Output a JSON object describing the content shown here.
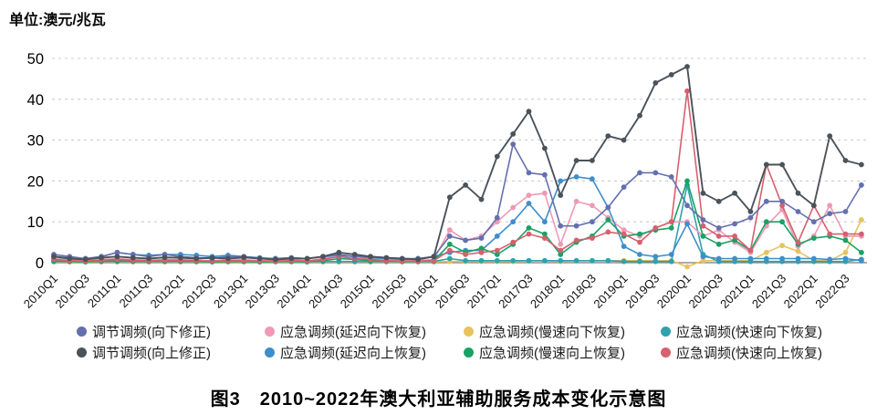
{
  "unit_label": "单位:澳元/兆瓦",
  "title": "图3　2010~2022年澳大利亚辅助服务成本变化示意图",
  "chart_data": {
    "type": "line",
    "title": "图3 2010~2022年澳大利亚辅助服务成本变化示意图",
    "xlabel": "",
    "ylabel": "澳元/兆瓦",
    "ylim": [
      -2,
      52
    ],
    "yticks": [
      0,
      10,
      20,
      30,
      40,
      50
    ],
    "grid": "horizontal-dashed",
    "legend_position": "bottom-2rows",
    "tick_step": 2,
    "categories": [
      "2010Q1",
      "2010Q2",
      "2010Q3",
      "2010Q4",
      "2011Q1",
      "2011Q2",
      "2011Q3",
      "2011Q4",
      "2012Q1",
      "2012Q2",
      "2012Q3",
      "2012Q4",
      "2013Q1",
      "2013Q2",
      "2013Q3",
      "2013Q4",
      "2014Q1",
      "2014Q2",
      "2014Q3",
      "2014Q4",
      "2015Q1",
      "2015Q2",
      "2015Q3",
      "2015Q4",
      "2016Q1",
      "2016Q2",
      "2016Q3",
      "2016Q4",
      "2017Q1",
      "2017Q2",
      "2017Q3",
      "2017Q4",
      "2018Q1",
      "2018Q2",
      "2018Q3",
      "2018Q4",
      "2019Q1",
      "2019Q2",
      "2019Q3",
      "2019Q4",
      "2020Q1",
      "2020Q2",
      "2020Q3",
      "2020Q4",
      "2021Q1",
      "2021Q2",
      "2021Q3",
      "2021Q4",
      "2022Q1",
      "2022Q2",
      "2022Q3",
      "2022Q4"
    ],
    "series": [
      {
        "key": "reg_down",
        "name": "调节调频(向下修正)",
        "color": "#6470ae",
        "values": [
          2,
          1.5,
          1,
          1.5,
          2.5,
          2,
          1.5,
          2,
          1.5,
          1.2,
          1,
          1.5,
          1.5,
          1,
          1,
          1.2,
          1,
          1.5,
          2,
          1.5,
          1.5,
          1.2,
          1,
          1,
          1.5,
          6.5,
          5.5,
          6,
          11,
          29,
          22,
          21.5,
          9,
          9,
          10,
          13.5,
          18.5,
          22,
          22,
          21,
          14,
          10.5,
          8.5,
          9.5,
          11,
          15,
          15,
          12.5,
          10,
          12,
          12.5,
          19
        ]
      },
      {
        "key": "em_delay_down",
        "name": "应急调频(延迟向下恢复)",
        "color": "#ee9ab5",
        "values": [
          1,
          0.8,
          0.5,
          0.8,
          1,
          0.8,
          0.6,
          0.8,
          0.8,
          0.6,
          0.5,
          0.8,
          0.8,
          0.5,
          0.5,
          0.6,
          0.5,
          1,
          2,
          1.5,
          1,
          0.8,
          0.5,
          0.5,
          0.8,
          8,
          5.5,
          6.5,
          10,
          13.5,
          16.5,
          17,
          4.5,
          15,
          14,
          11,
          8,
          6.5,
          8.5,
          10,
          10,
          6.5,
          8,
          5,
          2.5,
          9,
          13,
          4,
          6.5,
          14,
          6.5,
          6.5
        ]
      },
      {
        "key": "em_slow_down",
        "name": "应急调频(慢速向下恢复)",
        "color": "#e8c35d",
        "values": [
          0.2,
          0.2,
          0.2,
          0.2,
          0.2,
          0.2,
          0.2,
          0.2,
          0.2,
          0.2,
          0.2,
          0.2,
          0.2,
          0.2,
          0.2,
          0.2,
          0.2,
          0.2,
          0.2,
          0.2,
          0.2,
          0.2,
          0.2,
          0.2,
          0.2,
          0.3,
          0.3,
          0.3,
          0.3,
          0.3,
          0.5,
          0.5,
          0.3,
          0.5,
          0.5,
          0.5,
          0.5,
          0.5,
          0.5,
          0.5,
          -1,
          0.5,
          0.5,
          0.5,
          0.5,
          2.5,
          4.2,
          2.8,
          0.5,
          0.5,
          2.5,
          10.5
        ]
      },
      {
        "key": "em_fast_down",
        "name": "应急调频(快速向下恢复)",
        "color": "#31a1ae",
        "values": [
          0.3,
          0.3,
          0.3,
          0.3,
          0.3,
          0.3,
          0.3,
          0.3,
          0.3,
          0.3,
          0.3,
          0.3,
          0.3,
          0.3,
          0.3,
          0.3,
          0.3,
          0.3,
          0.3,
          0.3,
          0.3,
          0.3,
          0.3,
          0.3,
          0.3,
          1,
          0.5,
          0.5,
          0.5,
          0.5,
          0.5,
          0.5,
          0.5,
          0.5,
          0.5,
          0.5,
          0.3,
          0.3,
          0.3,
          0.3,
          19,
          2,
          0.3,
          0.3,
          0.3,
          0.3,
          0.3,
          0.3,
          0.3,
          0.3,
          0.3,
          0.8
        ]
      },
      {
        "key": "reg_up",
        "name": "调节调频(向上修正)",
        "color": "#4b535a",
        "values": [
          1.5,
          1,
          0.8,
          1.2,
          1.5,
          1.2,
          1,
          1.3,
          1.2,
          1,
          1.2,
          1,
          1.3,
          1,
          0.8,
          1,
          1,
          1.5,
          2.5,
          2,
          1.5,
          1.2,
          1,
          0.8,
          1.5,
          16,
          19,
          15.5,
          26,
          31.5,
          37,
          28,
          16.5,
          25,
          25,
          31,
          30,
          36,
          44,
          46,
          48,
          17,
          15,
          17,
          12.5,
          24,
          24,
          17,
          14,
          31,
          25,
          24
        ]
      },
      {
        "key": "em_delay_up",
        "name": "应急调频(延迟向上恢复)",
        "color": "#3e8ecb",
        "values": [
          1.5,
          1.2,
          1,
          1.5,
          2.5,
          2,
          1.8,
          2,
          2,
          1.8,
          1.5,
          1.8,
          1.5,
          1.2,
          1,
          1.2,
          1,
          1.5,
          1.8,
          1.5,
          1.2,
          1,
          0.8,
          1,
          1.5,
          2.5,
          3,
          3,
          6.5,
          10,
          14.5,
          10,
          20,
          21,
          20.5,
          13.5,
          4,
          2,
          1.5,
          2,
          9.5,
          1.5,
          1,
          1,
          1,
          1,
          1,
          1,
          1,
          0.8,
          1,
          0.5
        ]
      },
      {
        "key": "em_slow_up",
        "name": "应急调频(慢速向上恢复)",
        "color": "#19a263",
        "values": [
          0.5,
          0.3,
          0.2,
          0.4,
          0.5,
          0.4,
          0.3,
          0.4,
          0.4,
          0.3,
          0.2,
          0.3,
          0.3,
          0.2,
          0.3,
          0.3,
          0.2,
          0.5,
          1,
          0.8,
          0.5,
          0.4,
          0.3,
          0.3,
          0.5,
          4.5,
          2.5,
          3.5,
          2,
          4.5,
          8.5,
          7,
          2,
          5,
          6.5,
          10.5,
          6.5,
          7,
          8,
          8.5,
          20,
          6.5,
          4.5,
          5.5,
          3,
          10,
          10,
          4.5,
          6,
          6.5,
          5.5,
          2.5
        ]
      },
      {
        "key": "em_fast_up",
        "name": "应急调频(快速向上恢复)",
        "color": "#d5606e",
        "values": [
          0.8,
          0.5,
          0.4,
          0.6,
          0.8,
          0.6,
          0.5,
          0.6,
          0.6,
          0.5,
          0.4,
          0.5,
          0.5,
          0.4,
          0.4,
          0.5,
          0.4,
          0.8,
          1.5,
          1,
          0.8,
          0.5,
          0.4,
          0.4,
          0.5,
          3,
          2,
          2.5,
          3,
          5,
          7,
          6,
          3,
          5.5,
          6,
          7.5,
          7,
          5,
          8.5,
          10,
          42,
          9,
          6.5,
          6.5,
          3,
          24,
          14,
          5,
          14,
          7,
          7,
          7
        ]
      }
    ]
  }
}
